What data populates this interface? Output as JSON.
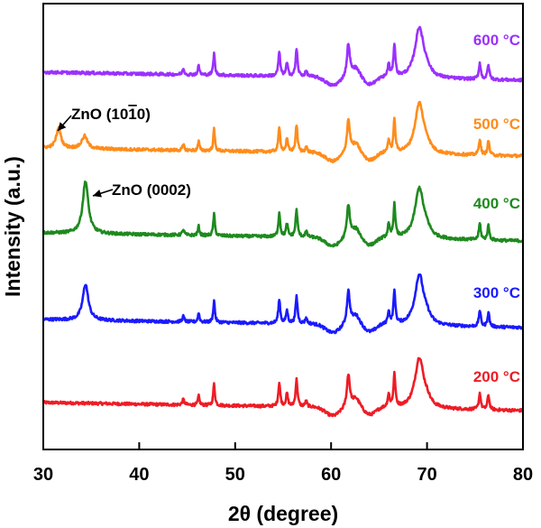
{
  "chart_data": {
    "type": "line",
    "xlabel": "2θ (degree)",
    "ylabel": "Intensity (a.u.)",
    "xlim": [
      30,
      80
    ],
    "x_ticks": [
      "30",
      "40",
      "50",
      "60",
      "70",
      "80"
    ],
    "y_ticks_shown": false,
    "legend": "inline-right",
    "series": [
      {
        "name": "200 °C",
        "color": "#ee1c25",
        "offset": 0.0,
        "has_0002": false,
        "has_1010": false
      },
      {
        "name": "300 °C",
        "color": "#1a1aff",
        "offset": 1.0,
        "has_0002": true,
        "has_1010": false
      },
      {
        "name": "400 °C",
        "color": "#1e8a1e",
        "offset": 2.0,
        "has_0002": true,
        "has_1010": false
      },
      {
        "name": "500 °C",
        "color": "#ff8c1a",
        "offset": 3.0,
        "has_0002": false,
        "has_1010": true
      },
      {
        "name": "600 °C",
        "color": "#9b30ff",
        "offset": 4.0,
        "has_0002": false,
        "has_1010": false
      }
    ],
    "annotations": [
      {
        "text": "ZnO (10",
        "bar_char": "1",
        "text_end": "0)",
        "x": 31.6
      },
      {
        "text": "ZnO (0002)",
        "x": 34.4
      }
    ]
  }
}
